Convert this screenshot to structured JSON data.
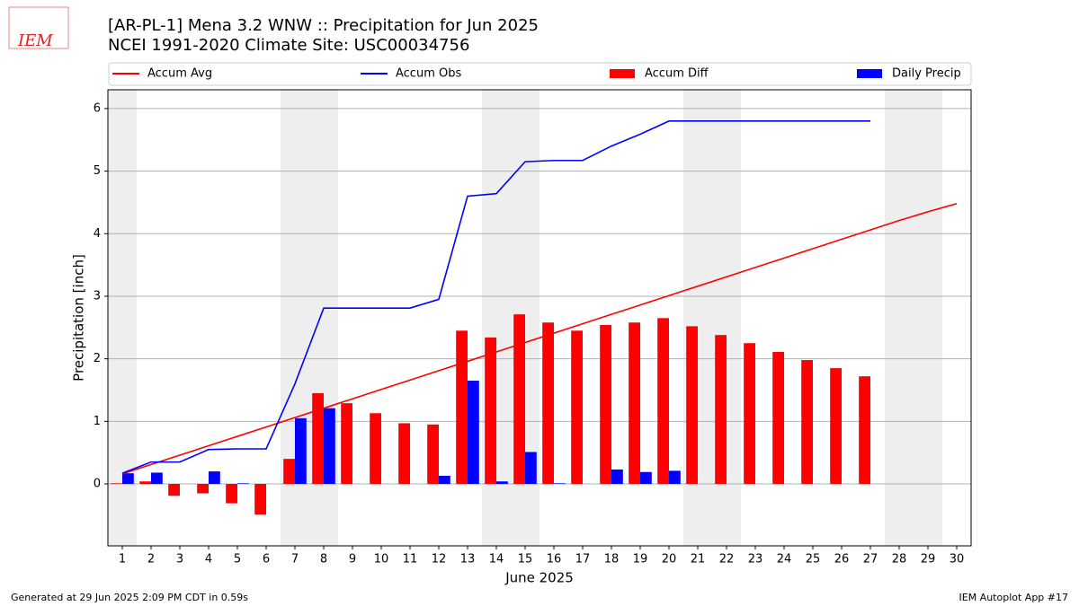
{
  "logo": "IEM",
  "chart_data": {
    "type": "combo",
    "title": "[AR-PL-1] Mena 3.2 WNW :: Precipitation for Jun 2025",
    "subtitle": "NCEI 1991-2020 Climate Site: USC00034756",
    "xlabel": "June 2025",
    "ylabel": "Precipitation [inch]",
    "x": [
      1,
      2,
      3,
      4,
      5,
      6,
      7,
      8,
      9,
      10,
      11,
      12,
      13,
      14,
      15,
      16,
      17,
      18,
      19,
      20,
      21,
      22,
      23,
      24,
      25,
      26,
      27,
      28,
      29,
      30
    ],
    "xlim": [
      0.5,
      30.5
    ],
    "xticks": [
      1,
      2,
      3,
      4,
      5,
      6,
      7,
      8,
      9,
      10,
      11,
      12,
      13,
      14,
      15,
      16,
      17,
      18,
      19,
      20,
      21,
      22,
      23,
      24,
      25,
      26,
      27,
      28,
      29,
      30
    ],
    "ylim": [
      -0.99,
      6.3
    ],
    "yticks": [
      0,
      1,
      2,
      3,
      4,
      5,
      6
    ],
    "grid": true,
    "weekend_bands": [
      [
        0.5,
        1.5
      ],
      [
        6.5,
        8.5
      ],
      [
        13.5,
        15.5
      ],
      [
        20.5,
        22.5
      ],
      [
        27.5,
        29.5
      ]
    ],
    "band_color": "#eeeeee",
    "series": [
      {
        "name": "Accum Avg",
        "type": "line",
        "color": "#ff0000",
        "values": [
          0.16,
          0.31,
          0.46,
          0.61,
          0.76,
          0.91,
          1.06,
          1.21,
          1.36,
          1.51,
          1.66,
          1.81,
          1.96,
          2.11,
          2.26,
          2.41,
          2.56,
          2.71,
          2.86,
          3.01,
          3.16,
          3.31,
          3.46,
          3.61,
          3.76,
          3.91,
          4.06,
          4.21,
          4.35,
          4.48
        ]
      },
      {
        "name": "Accum Obs",
        "type": "line",
        "color": "#0000ff",
        "values": [
          0.17,
          0.35,
          0.35,
          0.55,
          0.56,
          0.56,
          1.6,
          2.81,
          2.81,
          2.81,
          2.81,
          2.95,
          4.6,
          4.64,
          5.15,
          5.17,
          5.17,
          5.4,
          5.59,
          5.8,
          5.8,
          5.8,
          5.8,
          5.8,
          5.8,
          5.8,
          5.8,
          null,
          null,
          null
        ]
      },
      {
        "name": "Accum Diff",
        "type": "bar",
        "color": "#ff0000",
        "offset": -0.2,
        "values": [
          0.01,
          0.04,
          -0.19,
          -0.15,
          -0.31,
          -0.49,
          0.4,
          1.45,
          1.29,
          1.13,
          0.97,
          0.95,
          2.45,
          2.34,
          2.71,
          2.58,
          2.45,
          2.54,
          2.58,
          2.65,
          2.52,
          2.38,
          2.25,
          2.11,
          1.98,
          1.85,
          1.72,
          null,
          null,
          null
        ]
      },
      {
        "name": "Daily Precip",
        "type": "bar",
        "color": "#0000ff",
        "offset": 0.2,
        "values": [
          0.17,
          0.18,
          0,
          0.2,
          0.01,
          0,
          1.05,
          1.21,
          0,
          0,
          0,
          0.13,
          1.65,
          0.04,
          0.51,
          0.01,
          0,
          0.23,
          0.19,
          0.21,
          0,
          0,
          0,
          0,
          0,
          0,
          0,
          null,
          null,
          null
        ]
      }
    ]
  },
  "footer": {
    "left": "Generated at 29 Jun 2025 2:09 PM CDT in 0.59s",
    "right": "IEM Autoplot App #17"
  }
}
